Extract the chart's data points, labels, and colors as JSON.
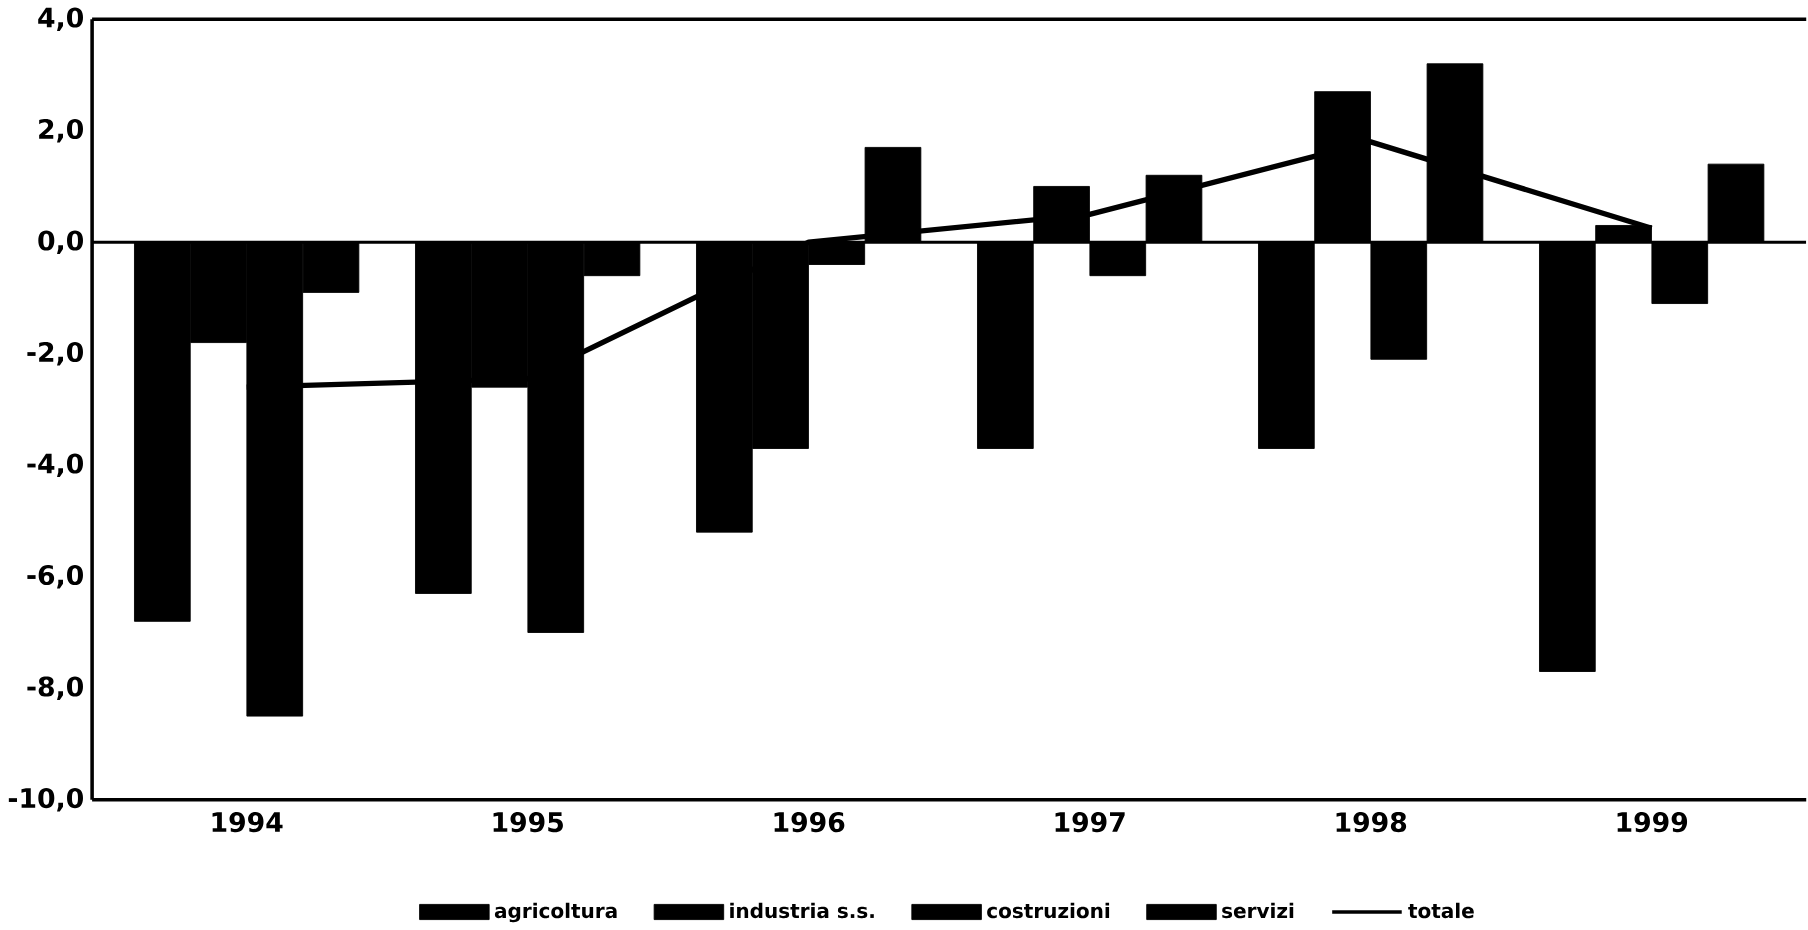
{
  "chart_data": {
    "type": "bar",
    "categories": [
      "1994",
      "1995",
      "1996",
      "1997",
      "1998",
      "1999"
    ],
    "series": [
      {
        "name": "agricoltura",
        "color": "#000000",
        "values": [
          -6.8,
          -6.3,
          -5.2,
          -3.7,
          -3.7,
          -7.7
        ]
      },
      {
        "name": "industria s.s.",
        "color": "#000000",
        "values": [
          -1.8,
          -2.6,
          -3.7,
          1.0,
          2.7,
          0.3
        ]
      },
      {
        "name": "costruzioni",
        "color": "#000000",
        "values": [
          -8.5,
          -7.0,
          -0.4,
          -0.6,
          -2.1,
          -1.1
        ]
      },
      {
        "name": "servizi",
        "color": "#000000",
        "values": [
          -0.9,
          -0.6,
          1.7,
          1.2,
          3.2,
          1.4
        ]
      },
      {
        "name": "totale",
        "type": "line",
        "color": "#000000",
        "values": [
          -2.6,
          -2.45,
          0.0,
          0.5,
          1.8,
          0.25
        ]
      }
    ],
    "ylim": [
      -10,
      4
    ],
    "yticks": [
      {
        "value": -10,
        "label": "-10,0"
      },
      {
        "value": -8,
        "label": "-8,0"
      },
      {
        "value": -6,
        "label": "-6,0"
      },
      {
        "value": -4,
        "label": "-4,0"
      },
      {
        "value": -2,
        "label": "-2,0"
      },
      {
        "value": 0,
        "label": "0,0"
      },
      {
        "value": 2,
        "label": "2,0"
      },
      {
        "value": 4,
        "label": "4,0"
      }
    ],
    "ref_lines": [
      {
        "axis": "y",
        "value": 0
      }
    ],
    "legend": "bottom"
  }
}
